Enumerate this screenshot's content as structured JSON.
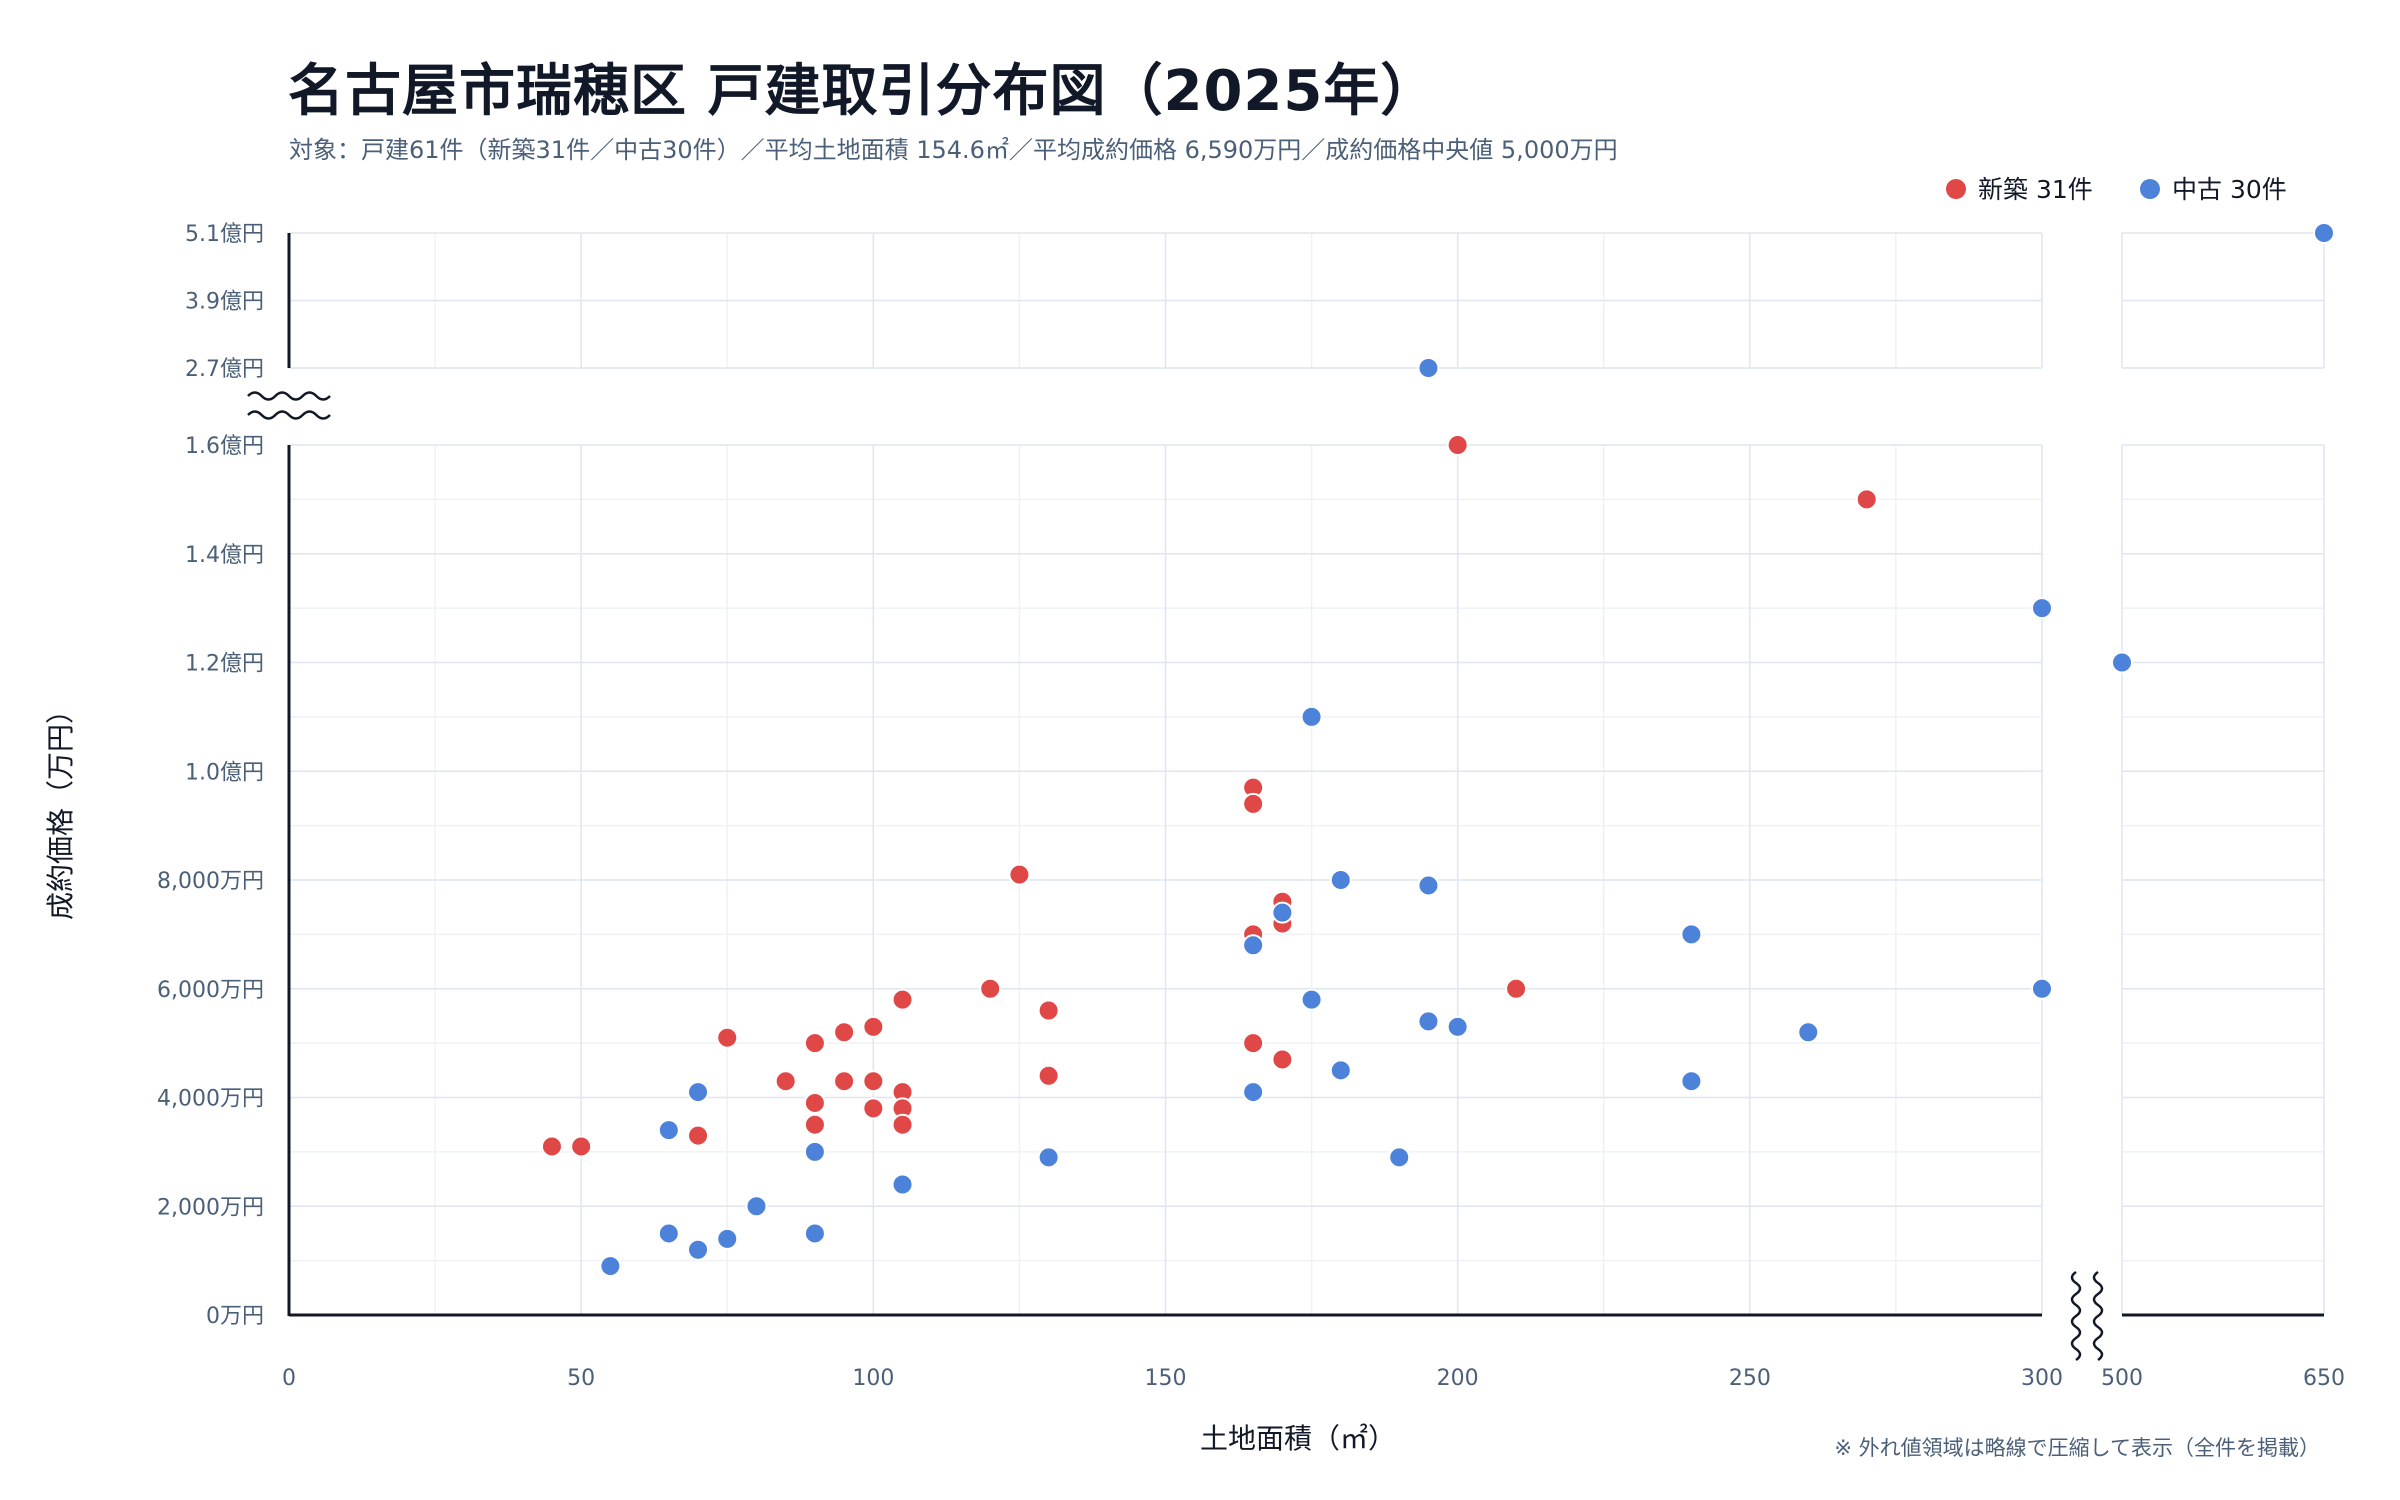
{
  "chart_data": {
    "type": "scatter",
    "title": "名古屋市瑞穂区 戸建取引分布図（2025年）",
    "subtitle": "対象：戸建61件（新築31件／中古30件）／平均土地面積 154.6㎡／平均成約価格 6,590万円／成約価格中央値 5,000万円",
    "xlabel": "土地面積（㎡）",
    "ylabel": "成約価格（万円）",
    "note": "※ 外れ値領域は略線で圧縮して表示（全件を掲載）",
    "xlim": [
      0,
      650
    ],
    "x_axis_break": [
      300,
      500
    ],
    "ylim": [
      0,
      51000
    ],
    "y_axis_break": [
      16000,
      27000
    ],
    "grid": true,
    "legend_position": "top-right",
    "x_ticks": [
      {
        "value": 0,
        "label": "0"
      },
      {
        "value": 50,
        "label": "50"
      },
      {
        "value": 100,
        "label": "100"
      },
      {
        "value": 150,
        "label": "150"
      },
      {
        "value": 200,
        "label": "200"
      },
      {
        "value": 250,
        "label": "250"
      },
      {
        "value": 300,
        "label": "300"
      },
      {
        "value": 500,
        "label": "500"
      },
      {
        "value": 650,
        "label": "650"
      }
    ],
    "y_ticks": [
      {
        "value": 0,
        "label": "0万円"
      },
      {
        "value": 2000,
        "label": "2,000万円"
      },
      {
        "value": 4000,
        "label": "4,000万円"
      },
      {
        "value": 6000,
        "label": "6,000万円"
      },
      {
        "value": 8000,
        "label": "8,000万円"
      },
      {
        "value": 10000,
        "label": "1.0億円"
      },
      {
        "value": 12000,
        "label": "1.2億円"
      },
      {
        "value": 14000,
        "label": "1.4億円"
      },
      {
        "value": 16000,
        "label": "1.6億円"
      },
      {
        "value": 27000,
        "label": "2.7億円"
      },
      {
        "value": 39000,
        "label": "3.9億円"
      },
      {
        "value": 51000,
        "label": "5.1億円"
      }
    ],
    "series": [
      {
        "name": "新築",
        "legend_label": "新築 31件",
        "color": "#e04848",
        "points": [
          [
            45,
            3100
          ],
          [
            50,
            3100
          ],
          [
            70,
            3300
          ],
          [
            75,
            5100
          ],
          [
            85,
            4300
          ],
          [
            90,
            5000
          ],
          [
            90,
            3900
          ],
          [
            90,
            3500
          ],
          [
            95,
            5200
          ],
          [
            95,
            4300
          ],
          [
            100,
            5300
          ],
          [
            100,
            4300
          ],
          [
            100,
            3800
          ],
          [
            105,
            5800
          ],
          [
            105,
            4100
          ],
          [
            105,
            3800
          ],
          [
            105,
            3500
          ],
          [
            120,
            6000
          ],
          [
            125,
            8100
          ],
          [
            130,
            5600
          ],
          [
            130,
            4400
          ],
          [
            165,
            9700
          ],
          [
            165,
            9400
          ],
          [
            165,
            7000
          ],
          [
            165,
            5000
          ],
          [
            170,
            7600
          ],
          [
            170,
            7200
          ],
          [
            170,
            4700
          ],
          [
            200,
            16000
          ],
          [
            210,
            6000
          ],
          [
            270,
            15000
          ]
        ]
      },
      {
        "name": "中古",
        "legend_label": "中古 30件",
        "color": "#4d82db",
        "points": [
          [
            55,
            900
          ],
          [
            65,
            3400
          ],
          [
            65,
            1500
          ],
          [
            70,
            4100
          ],
          [
            70,
            1200
          ],
          [
            75,
            1400
          ],
          [
            80,
            2000
          ],
          [
            90,
            3000
          ],
          [
            90,
            1500
          ],
          [
            105,
            2400
          ],
          [
            130,
            2900
          ],
          [
            165,
            6800
          ],
          [
            165,
            4100
          ],
          [
            170,
            7400
          ],
          [
            175,
            11000
          ],
          [
            175,
            5800
          ],
          [
            180,
            8000
          ],
          [
            180,
            4500
          ],
          [
            190,
            2900
          ],
          [
            195,
            27000
          ],
          [
            195,
            7900
          ],
          [
            195,
            5400
          ],
          [
            200,
            5300
          ],
          [
            240,
            7000
          ],
          [
            240,
            4300
          ],
          [
            260,
            5200
          ],
          [
            300,
            13000
          ],
          [
            300,
            6000
          ],
          [
            500,
            12000
          ],
          [
            650,
            51000
          ]
        ]
      }
    ]
  }
}
